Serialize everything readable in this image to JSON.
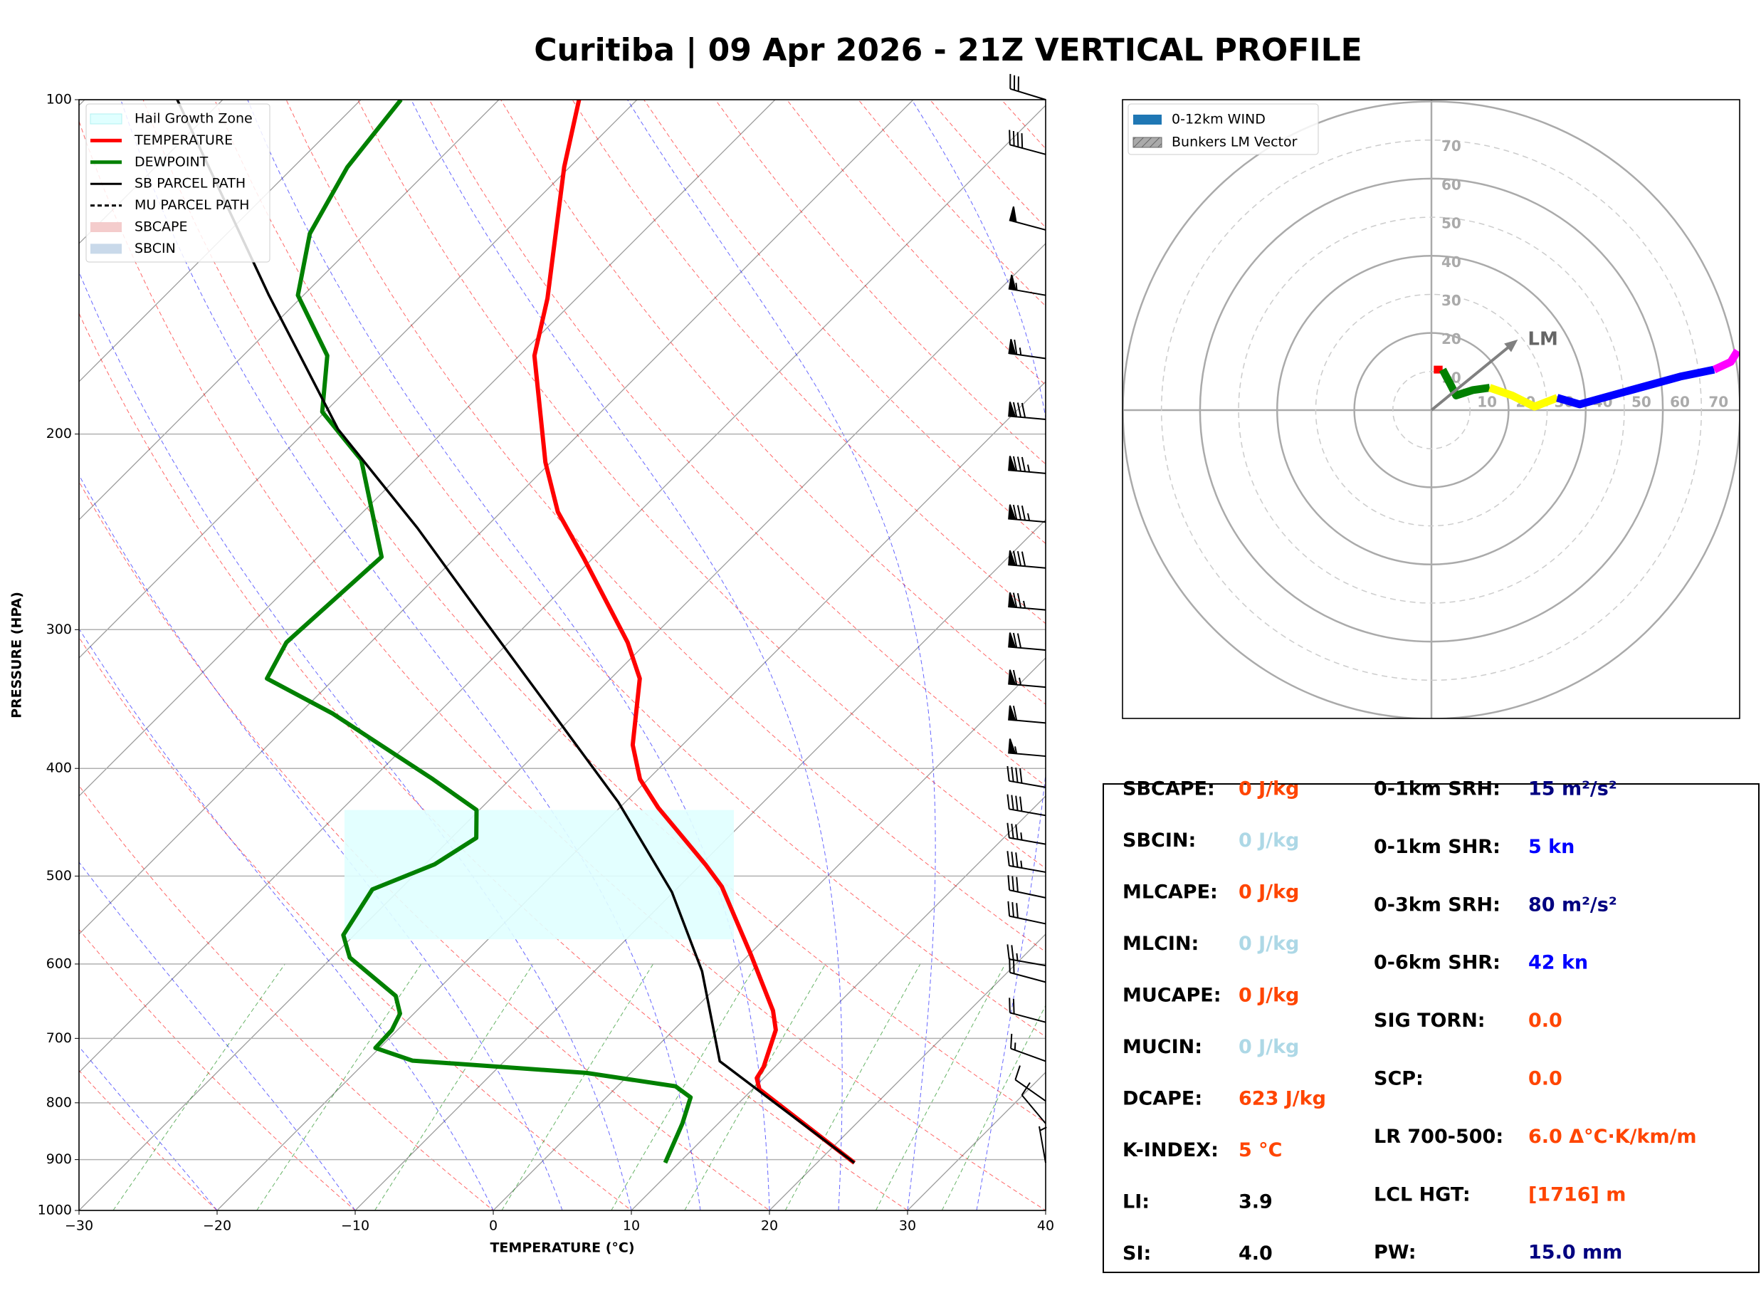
{
  "title": "Curitiba | 09 Apr 2026 - 21Z VERTICAL PROFILE",
  "chart_data": [
    {
      "type": "skewt",
      "xlabel": "TEMPERATURE (°C)",
      "ylabel": "PRESSURE (HPA)",
      "xlim": [
        -30,
        40
      ],
      "ylim": [
        1000,
        100
      ],
      "log_y": true,
      "grid": true,
      "xticks": [
        {
          "value": -30,
          "label": "−30"
        },
        {
          "value": -20,
          "label": "−20"
        },
        {
          "value": -10,
          "label": "−10"
        },
        0,
        10,
        20,
        30,
        40
      ],
      "yticks": [
        1000,
        900,
        800,
        700,
        600,
        500,
        400,
        300,
        200,
        100
      ],
      "series": [
        {
          "name": "Hail Growth Zone",
          "color": "#e0ffff",
          "style": "band",
          "pressure": [
            570,
            436
          ]
        },
        {
          "name": "TEMPERATURE",
          "color": "#ff0000",
          "style": "line",
          "pressure": [
            906,
            778,
            760,
            743,
            688,
            661,
            588,
            511,
            488,
            434,
            409,
            381,
            332,
            308,
            259,
            235,
            212,
            170,
            151,
            115,
            100
          ],
          "values": [
            22.7,
            10.5,
            9.5,
            9.2,
            7.4,
            5.8,
            0.1,
            -6.9,
            -9.7,
            -17.2,
            -20.6,
            -23.6,
            -27.9,
            -31.4,
            -40.6,
            -45.9,
            -50.4,
            -58.9,
            -62.1,
            -70.4,
            -74.2
          ]
        },
        {
          "name": "DEWPOINT",
          "color": "#008000",
          "style": "line",
          "pressure": [
            906,
            835,
            791,
            773,
            752,
            733,
            714,
            688,
            665,
            641,
            592,
            565,
            514,
            488,
            462,
            436,
            409,
            357,
            332,
            308,
            258,
            211,
            191,
            170,
            150,
            132,
            115,
            100
          ],
          "values": [
            9.0,
            7.4,
            6.1,
            4.2,
            -3.2,
            -16.7,
            -20.3,
            -20.4,
            -21.0,
            -22.6,
            -28.7,
            -30.8,
            -32.0,
            -29.3,
            -28.2,
            -30.2,
            -35.6,
            -47.6,
            -54.9,
            -56.1,
            -55.4,
            -63.9,
            -70.2,
            -73.9,
            -80.4,
            -84.0,
            -86.1,
            -87.1
          ]
        },
        {
          "name": "SB PARCEL PATH",
          "color": "#000000",
          "style": "thin",
          "pressure": [
            906,
            734,
            609,
            517,
            429,
            356,
            295,
            243,
            198,
            150,
            100
          ],
          "values": [
            22.7,
            5.6,
            -2.2,
            -10.1,
            -20.5,
            -31.8,
            -43.2,
            -54.9,
            -67.8,
            -82.5,
            -103.3
          ]
        },
        {
          "name": "MU PARCEL PATH",
          "color": "#000000",
          "style": "dashed"
        },
        {
          "name": "SBCAPE",
          "color": "#f4cccc",
          "style": "patch"
        },
        {
          "name": "SBCIN",
          "color": "#c9d9ea",
          "style": "patch"
        }
      ],
      "winds": {
        "pressure": [
          100,
          112,
          131,
          150,
          171,
          194,
          217,
          240,
          264,
          288,
          313,
          338,
          364,
          390,
          416,
          441,
          468,
          496,
          523,
          552,
          602,
          623,
          677,
          734,
          797,
          835,
          906
        ],
        "speed": [
          30,
          40,
          50,
          55,
          65,
          80,
          85,
          85,
          80,
          75,
          70,
          65,
          60,
          55,
          40,
          40,
          35,
          35,
          30,
          30,
          25,
          20,
          20,
          15,
          10,
          10,
          5
        ],
        "direction": [
          287,
          285,
          285,
          280,
          278,
          275,
          275,
          275,
          275,
          275,
          275,
          275,
          275,
          275,
          280,
          280,
          280,
          280,
          282,
          282,
          280,
          285,
          285,
          290,
          305,
          320,
          350
        ]
      }
    },
    {
      "type": "hodograph",
      "lim": [
        -80,
        80
      ],
      "rticks": [
        10,
        20,
        30,
        40,
        50,
        60,
        70
      ],
      "legend": [
        {
          "name": "0-12km WIND",
          "color": "#1f77b4"
        },
        {
          "name": "Bunkers LM Vector",
          "color": "#aaaaaa"
        }
      ],
      "segments": [
        {
          "color": "#ff0000",
          "u": [
            0.6,
            2.9
          ],
          "v": [
            10.5,
            10.5
          ]
        },
        {
          "color": "#008000",
          "u": [
            2.9,
            4.9,
            6.4,
            10.8,
            15.1
          ],
          "v": [
            10.5,
            6.7,
            3.8,
            5.2,
            5.8
          ]
        },
        {
          "color": "#ffff00",
          "u": [
            15.1,
            20.9,
            26.7,
            32.6
          ],
          "v": [
            5.8,
            3.8,
            0.9,
            3.2
          ]
        },
        {
          "color": "#0000ff",
          "u": [
            32.6,
            38.4,
            50,
            64.5,
            73.3
          ],
          "v": [
            3.2,
            1.5,
            4.7,
            8.7,
            10.5
          ]
        },
        {
          "color": "#ff00ff",
          "u": [
            73.3,
            77.6,
            79.4
          ],
          "v": [
            10.5,
            12.5,
            15.4
          ]
        }
      ],
      "lm_vector": {
        "label": "LM",
        "u": 22.4,
        "v": 18.3,
        "color": "#808080"
      }
    }
  ],
  "indices": {
    "left": [
      {
        "label": "SBCAPE:",
        "value": "0 J/kg",
        "color": "#ff4500"
      },
      {
        "label": "SBCIN:",
        "value": "0 J/kg",
        "color": "#add8e6"
      },
      {
        "label": "MLCAPE:",
        "value": "0 J/kg",
        "color": "#ff4500"
      },
      {
        "label": "MLCIN:",
        "value": "0 J/kg",
        "color": "#add8e6"
      },
      {
        "label": "MUCAPE:",
        "value": "0 J/kg",
        "color": "#ff4500"
      },
      {
        "label": "MUCIN:",
        "value": "0 J/kg",
        "color": "#add8e6"
      },
      {
        "label": "DCAPE:",
        "value": "623 J/kg",
        "color": "#ff4500"
      },
      {
        "label": "K-INDEX:",
        "value": "5 °C",
        "color": "#ff4500"
      },
      {
        "label": "LI:",
        "value": "3.9",
        "color": "#000000"
      },
      {
        "label": "SI:",
        "value": "4.0",
        "color": "#000000"
      }
    ],
    "right": [
      {
        "label": "0-1km SRH:",
        "value": "15 m²/s²",
        "color": "#000080"
      },
      {
        "label": "0-1km SHR:",
        "value": "5 kn",
        "color": "#0000ff"
      },
      {
        "label": "0-3km SRH:",
        "value": "80 m²/s²",
        "color": "#000080"
      },
      {
        "label": "0-6km SHR:",
        "value": "42 kn",
        "color": "#0000ff"
      },
      {
        "label": "SIG TORN:",
        "value": "0.0",
        "color": "#ff4500"
      },
      {
        "label": "SCP:",
        "value": "0.0",
        "color": "#ff4500"
      },
      {
        "label": "LR 700-500:",
        "value": "6.0 Δ°C·K/km/m",
        "color": "#ff4500"
      },
      {
        "label": "LCL HGT:",
        "value": "[1716] m",
        "color": "#ff4500"
      },
      {
        "label": "PW:",
        "value": "15.0 mm",
        "color": "#000080"
      }
    ]
  }
}
